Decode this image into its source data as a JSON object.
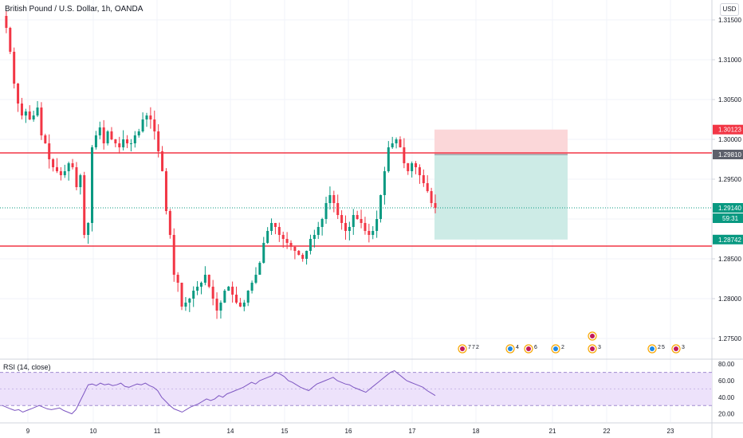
{
  "symbol_title": "British Pound / U.S. Dollar, 1h, OANDA",
  "currency_button": "USD",
  "rsi_label": "RSI (14, close)",
  "price_axis": {
    "ticks": [
      {
        "value": 1.315,
        "label": "1.31500"
      },
      {
        "value": 1.31,
        "label": "1.31000"
      },
      {
        "value": 1.305,
        "label": "1.30500"
      },
      {
        "value": 1.3,
        "label": "1.30000"
      },
      {
        "value": 1.295,
        "label": "1.29500"
      },
      {
        "value": 1.29,
        "label": "1.29000"
      },
      {
        "value": 1.285,
        "label": "1.28500"
      },
      {
        "value": 1.28,
        "label": "1.28000"
      },
      {
        "value": 1.275,
        "label": "1.27500"
      }
    ],
    "badges": [
      {
        "value": 1.30123,
        "label": "1.30123",
        "color": "#f23645"
      },
      {
        "value": 1.2981,
        "label": "1.29810",
        "color": "#5d606b"
      },
      {
        "value": 1.2914,
        "label": "1.29140",
        "color": "#089981"
      },
      {
        "value": 1.28742,
        "label": "1.28742",
        "color": "#089981"
      }
    ],
    "countdown": "59:31"
  },
  "rsi_axis": {
    "ticks": [
      {
        "value": 80,
        "label": "80.00"
      },
      {
        "value": 60,
        "label": "60.00"
      },
      {
        "value": 40,
        "label": "40.00"
      },
      {
        "value": 20,
        "label": "20.00"
      }
    ],
    "band_upper": 70,
    "band_lower": 30
  },
  "time_axis": [
    "9",
    "10",
    "11",
    "14",
    "15",
    "16",
    "17",
    "18",
    "21",
    "22",
    "23"
  ],
  "horizontal_lines": [
    1.2983,
    1.2866
  ],
  "position": {
    "entry": 1.2981,
    "stop": 1.30123,
    "target": 1.28742
  },
  "last_price": 1.2914,
  "events": [
    {
      "day": "17",
      "labels": [
        "7",
        "7",
        "2"
      ]
    },
    {
      "day": "18",
      "labels": [
        "4"
      ]
    },
    {
      "day": "18",
      "labels": [
        "6"
      ]
    },
    {
      "day": "21",
      "labels": [
        "2"
      ]
    },
    {
      "day": "22",
      "labels": [
        "3"
      ]
    },
    {
      "day": "23",
      "labels": [
        "2",
        "5"
      ]
    },
    {
      "day": "23",
      "labels": [
        "3"
      ]
    }
  ],
  "colors": {
    "bull": "#089981",
    "bear": "#f23645",
    "rsi_line": "#7e57c2",
    "rsi_band": "#ede2fb",
    "stop_zone": "#fbd7d9",
    "target_zone": "#cdebe6"
  },
  "chart_data": {
    "type": "candlestick",
    "title": "British Pound / U.S. Dollar, 1h, OANDA",
    "price_path": [
      1.3155,
      1.314,
      1.311,
      1.307,
      1.3045,
      1.303,
      1.3035,
      1.3025,
      1.303,
      1.304,
      1.3005,
      1.2995,
      1.2975,
      1.2965,
      1.296,
      1.2955,
      1.296,
      1.297,
      1.2965,
      1.294,
      1.2955,
      1.288,
      1.2895,
      1.299,
      1.3005,
      1.3015,
      1.2995,
      1.301,
      1.3,
      1.2995,
      1.299,
      1.3,
      1.2995,
      1.2995,
      1.3005,
      1.301,
      1.3025,
      1.303,
      1.3025,
      1.301,
      1.2985,
      1.296,
      1.291,
      1.288,
      1.283,
      1.282,
      1.279,
      1.2795,
      1.28,
      1.281,
      1.2815,
      1.282,
      1.283,
      1.2815,
      1.28,
      1.2785,
      1.2795,
      1.281,
      1.2815,
      1.2805,
      1.2795,
      1.279,
      1.2795,
      1.281,
      1.282,
      1.283,
      1.2845,
      1.287,
      1.2885,
      1.2895,
      1.289,
      1.288,
      1.2875,
      1.287,
      1.2865,
      1.286,
      1.2855,
      1.285,
      1.286,
      1.2875,
      1.288,
      1.289,
      1.29,
      1.292,
      1.293,
      1.292,
      1.2905,
      1.2895,
      1.2885,
      1.289,
      1.2905,
      1.29,
      1.2895,
      1.2885,
      1.288,
      1.2885,
      1.29,
      1.293,
      1.296,
      1.299,
      1.2995,
      1.3,
      1.299,
      1.297,
      1.296,
      1.297,
      1.2965,
      1.2955,
      1.2945,
      1.2935,
      1.292,
      1.2914
    ],
    "rsi_path": [
      30,
      28,
      26,
      24,
      25,
      22,
      24,
      26,
      28,
      30,
      28,
      26,
      25,
      26,
      27,
      24,
      22,
      20,
      25,
      35,
      45,
      55,
      56,
      54,
      57,
      55,
      56,
      54,
      55,
      57,
      53,
      52,
      54,
      56,
      55,
      57,
      54,
      52,
      48,
      40,
      35,
      30,
      26,
      24,
      22,
      25,
      28,
      30,
      32,
      35,
      38,
      36,
      38,
      42,
      40,
      44,
      46,
      48,
      50,
      52,
      55,
      58,
      56,
      60,
      62,
      64,
      66,
      70,
      68,
      65,
      60,
      58,
      55,
      52,
      50,
      48,
      52,
      56,
      58,
      60,
      62,
      64,
      60,
      58,
      56,
      55,
      52,
      50,
      48,
      46,
      50,
      54,
      58,
      62,
      66,
      70,
      72,
      68,
      64,
      60,
      58,
      56,
      54,
      52,
      48,
      45,
      42
    ],
    "ylabel": "",
    "ylim": [
      1.2725,
      1.3175
    ],
    "rsi_ylim": [
      10,
      85
    ]
  }
}
